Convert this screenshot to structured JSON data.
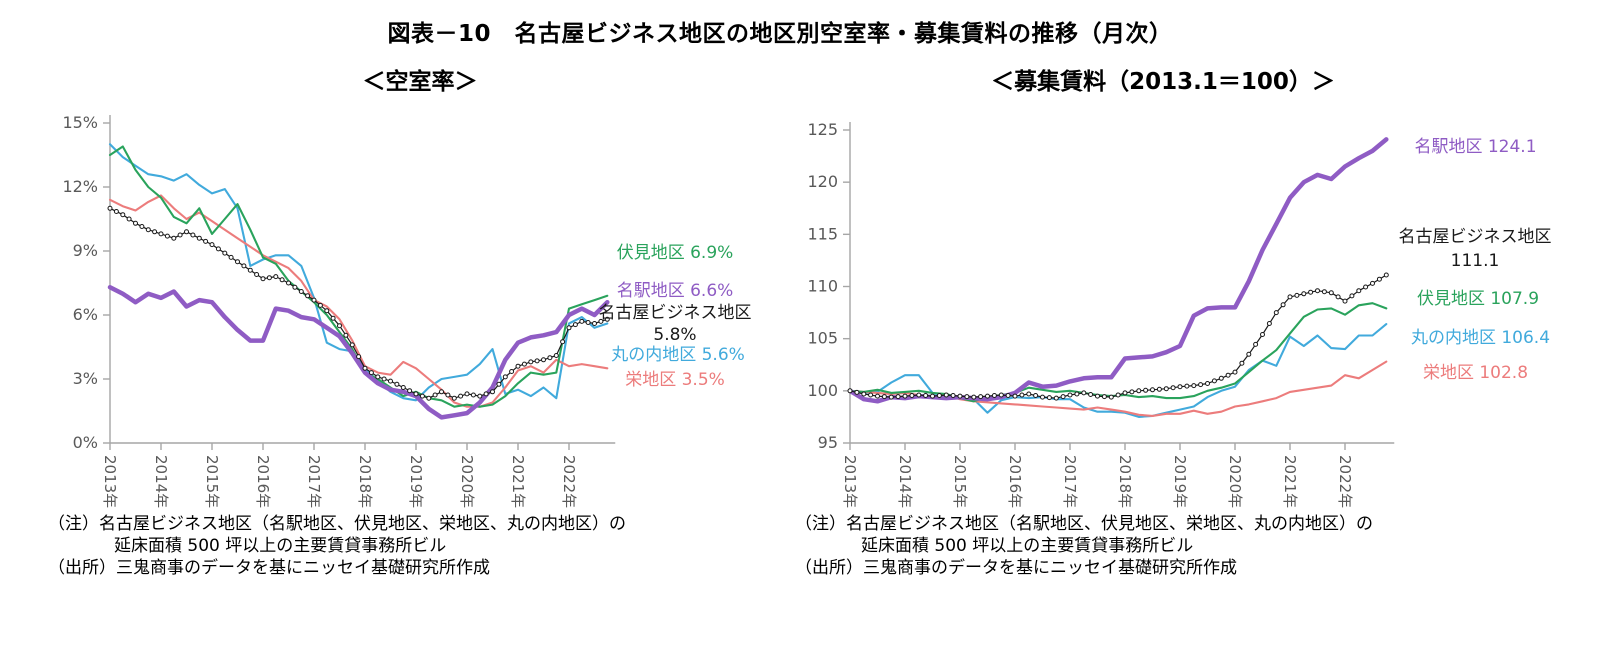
{
  "title": "図表－10　名古屋ビジネス地区の地区別空室率・募集賃料の推移（月次）",
  "colors": {
    "meieki": "#8f5cc4",
    "fushimi": "#2aa35c",
    "marunouchi": "#41aadc",
    "sakae": "#ec7c7c",
    "nbd": "#1a1a1a",
    "axis": "#a6a6a6",
    "tick_text": "#595959"
  },
  "footnote": {
    "line1": "（注）名古屋ビジネス地区（名駅地区、伏見地区、栄地区、丸の内地区）の",
    "line2": "延床面積 500 坪以上の主要賃貸事務所ビル",
    "line3": "（出所）三鬼商事のデータを基にニッセイ基礎研究所作成"
  },
  "chart_data": [
    {
      "type": "line",
      "title": "＜空室率＞",
      "x_start": 2013.0,
      "x_step": 0.25,
      "x_ticks": [
        2013,
        2014,
        2015,
        2016,
        2017,
        2018,
        2019,
        2020,
        2021,
        2022
      ],
      "x_tick_labels": [
        "2013年",
        "2014年",
        "2015年",
        "2016年",
        "2017年",
        "2018年",
        "2019年",
        "2020年",
        "2021年",
        "2022年"
      ],
      "ylim": [
        0,
        15
      ],
      "y_ticks": [
        0,
        3,
        6,
        9,
        12,
        15
      ],
      "y_tick_labels": [
        "0%",
        "3%",
        "6%",
        "9%",
        "12%",
        "15%"
      ],
      "grid": false,
      "legend_position": "right-end-labels",
      "series": [
        {
          "key": "marunouchi",
          "name": "丸の内地区",
          "color": "#41aadc",
          "width": 2.1,
          "marker": false,
          "values": [
            14.0,
            13.4,
            13.0,
            12.6,
            12.5,
            12.3,
            12.6,
            12.1,
            11.7,
            11.9,
            11.0,
            8.3,
            8.6,
            8.8,
            8.8,
            8.3,
            6.8,
            4.7,
            4.4,
            4.3,
            3.5,
            2.9,
            2.4,
            2.1,
            2.0,
            2.6,
            3.0,
            3.1,
            3.2,
            3.7,
            4.4,
            2.3,
            2.5,
            2.2,
            2.6,
            2.1,
            5.6,
            5.9,
            5.4,
            5.6
          ]
        },
        {
          "key": "sakae",
          "name": "栄地区",
          "color": "#ec7c7c",
          "width": 2.1,
          "marker": false,
          "values": [
            11.4,
            11.1,
            10.9,
            11.3,
            11.6,
            11.0,
            10.5,
            10.8,
            10.4,
            10.0,
            9.6,
            9.2,
            8.8,
            8.5,
            8.2,
            7.6,
            6.7,
            6.4,
            5.8,
            4.8,
            3.6,
            3.3,
            3.2,
            3.8,
            3.5,
            3.0,
            2.5,
            1.9,
            1.7,
            1.7,
            1.9,
            2.6,
            3.4,
            3.6,
            3.3,
            3.9,
            3.6,
            3.7,
            3.6,
            3.5
          ]
        },
        {
          "key": "fushimi",
          "name": "伏見地区",
          "color": "#2aa35c",
          "width": 2.1,
          "marker": false,
          "values": [
            13.5,
            13.9,
            12.8,
            12.0,
            11.5,
            10.6,
            10.3,
            11.0,
            9.8,
            10.5,
            11.2,
            10.0,
            8.7,
            8.4,
            7.6,
            7.1,
            6.6,
            6.0,
            5.2,
            4.4,
            3.3,
            3.0,
            2.6,
            2.2,
            2.4,
            2.1,
            2.0,
            1.7,
            1.8,
            1.7,
            1.8,
            2.2,
            2.8,
            3.3,
            3.2,
            3.3,
            6.3,
            6.5,
            6.7,
            6.9
          ]
        },
        {
          "key": "meieki",
          "name": "名駅地区",
          "color": "#8f5cc4",
          "width": 4.5,
          "marker": false,
          "values": [
            7.3,
            7.0,
            6.6,
            7.0,
            6.8,
            7.1,
            6.4,
            6.7,
            6.6,
            5.9,
            5.3,
            4.8,
            4.8,
            6.3,
            6.2,
            5.9,
            5.8,
            5.4,
            5.0,
            4.2,
            3.3,
            2.8,
            2.5,
            2.4,
            2.2,
            1.6,
            1.2,
            1.3,
            1.4,
            1.9,
            2.6,
            3.9,
            4.7,
            4.95,
            5.05,
            5.2,
            6.0,
            6.3,
            6.0,
            6.6
          ]
        },
        {
          "key": "nbd",
          "name": "名古屋ビジネス地区",
          "color": "#1a1a1a",
          "width": 1.2,
          "marker": true,
          "values": [
            11.0,
            10.7,
            10.3,
            10.0,
            9.8,
            9.6,
            9.9,
            9.6,
            9.3,
            8.9,
            8.5,
            8.1,
            7.7,
            7.8,
            7.5,
            7.1,
            6.7,
            6.2,
            5.5,
            4.6,
            3.5,
            3.1,
            2.9,
            2.6,
            2.3,
            2.1,
            2.4,
            2.1,
            2.3,
            2.2,
            2.4,
            3.1,
            3.6,
            3.8,
            3.9,
            4.1,
            5.4,
            5.7,
            5.6,
            5.8
          ]
        }
      ],
      "end_labels": {
        "fushimi": "伏見地区 6.9%",
        "meieki": "名駅地区 6.6%",
        "nbd_name": "名古屋ビジネス地区",
        "nbd_value": "5.8%",
        "marunouchi": "丸の内地区 5.6%",
        "sakae": "栄地区 3.5%"
      }
    },
    {
      "type": "line",
      "title": "＜募集賃料（2013.1＝100）＞",
      "x_start": 2013.0,
      "x_step": 0.25,
      "x_ticks": [
        2013,
        2014,
        2015,
        2016,
        2017,
        2018,
        2019,
        2020,
        2021,
        2022
      ],
      "x_tick_labels": [
        "2013年",
        "2014年",
        "2015年",
        "2016年",
        "2017年",
        "2018年",
        "2019年",
        "2020年",
        "2021年",
        "2022年"
      ],
      "ylim": [
        95,
        125
      ],
      "y_ticks": [
        95,
        100,
        105,
        110,
        115,
        120,
        125
      ],
      "y_tick_labels": [
        "95",
        "100",
        "105",
        "110",
        "115",
        "120",
        "125"
      ],
      "grid": false,
      "legend_position": "right-end-labels",
      "series": [
        {
          "key": "marunouchi",
          "name": "丸の内地区",
          "color": "#41aadc",
          "width": 2.1,
          "marker": false,
          "values": [
            100.0,
            99.8,
            99.9,
            100.8,
            101.5,
            101.5,
            99.8,
            99.4,
            99.3,
            99.2,
            97.9,
            99.1,
            99.4,
            99.3,
            99.4,
            99.2,
            99.2,
            98.4,
            98.0,
            98.0,
            97.9,
            97.5,
            97.6,
            97.9,
            98.2,
            98.5,
            99.4,
            100.0,
            100.4,
            102.0,
            102.9,
            102.4,
            105.2,
            104.3,
            105.3,
            104.1,
            104.0,
            105.3,
            105.3,
            106.4
          ]
        },
        {
          "key": "sakae",
          "name": "栄地区",
          "color": "#ec7c7c",
          "width": 2.1,
          "marker": false,
          "values": [
            100.0,
            99.9,
            99.8,
            99.7,
            99.8,
            99.6,
            99.4,
            99.6,
            99.2,
            99.0,
            98.9,
            98.8,
            98.7,
            98.6,
            98.5,
            98.4,
            98.3,
            98.2,
            98.4,
            98.2,
            98.0,
            97.7,
            97.6,
            97.8,
            97.8,
            98.1,
            97.8,
            98.0,
            98.5,
            98.7,
            99.0,
            99.3,
            99.9,
            100.1,
            100.3,
            100.5,
            101.5,
            101.2,
            102.0,
            102.8
          ]
        },
        {
          "key": "fushimi",
          "name": "伏見地区",
          "color": "#2aa35c",
          "width": 2.1,
          "marker": false,
          "values": [
            100.0,
            99.9,
            100.1,
            99.8,
            99.9,
            100.0,
            99.8,
            99.7,
            99.3,
            99.0,
            99.4,
            99.6,
            99.8,
            100.3,
            100.1,
            99.9,
            100.0,
            99.8,
            99.6,
            99.5,
            99.6,
            99.4,
            99.5,
            99.3,
            99.3,
            99.5,
            100.0,
            100.3,
            100.7,
            101.8,
            102.9,
            103.9,
            105.5,
            107.1,
            107.8,
            107.9,
            107.3,
            108.2,
            108.4,
            107.9
          ]
        },
        {
          "key": "meieki",
          "name": "名駅地区",
          "color": "#8f5cc4",
          "width": 4.5,
          "marker": false,
          "values": [
            100.0,
            99.2,
            99.0,
            99.4,
            99.3,
            99.5,
            99.4,
            99.3,
            99.4,
            99.3,
            99.2,
            99.4,
            99.8,
            100.8,
            100.4,
            100.5,
            100.9,
            101.2,
            101.3,
            101.3,
            103.1,
            103.2,
            103.3,
            103.7,
            104.3,
            107.2,
            107.9,
            108.0,
            108.0,
            110.5,
            113.5,
            116.0,
            118.5,
            120.0,
            120.7,
            120.3,
            121.5,
            122.3,
            123.0,
            124.1
          ]
        },
        {
          "key": "nbd",
          "name": "名古屋ビジネス地区",
          "color": "#1a1a1a",
          "width": 1.2,
          "marker": true,
          "values": [
            100.0,
            99.7,
            99.5,
            99.4,
            99.5,
            99.6,
            99.5,
            99.6,
            99.5,
            99.4,
            99.5,
            99.6,
            99.5,
            99.7,
            99.4,
            99.3,
            99.6,
            99.8,
            99.5,
            99.4,
            99.8,
            100.0,
            100.1,
            100.2,
            100.4,
            100.5,
            100.7,
            101.2,
            101.8,
            103.5,
            105.4,
            107.5,
            109.0,
            109.3,
            109.6,
            109.4,
            108.6,
            109.6,
            110.3,
            111.1
          ]
        }
      ],
      "end_labels": {
        "meieki": "名駅地区 124.1",
        "nbd_name": "名古屋ビジネス地区",
        "nbd_value": "111.1",
        "fushimi": "伏見地区 107.9",
        "marunouchi": "丸の内地区 106.4",
        "sakae": "栄地区 102.8"
      }
    }
  ]
}
